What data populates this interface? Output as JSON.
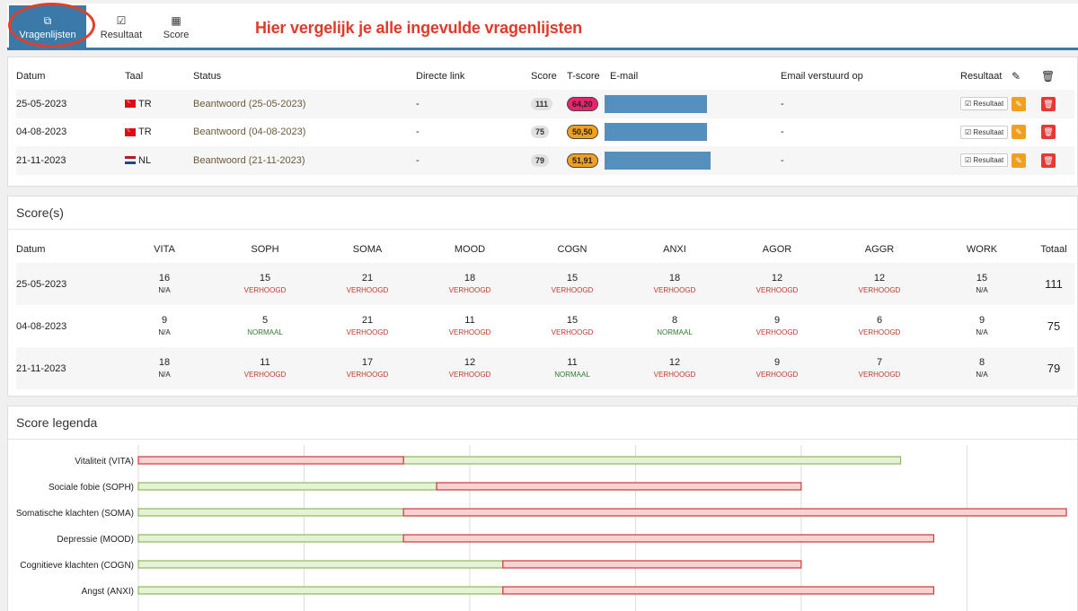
{
  "tabs": [
    {
      "label": "Vragenlijsten",
      "icon": "copy-icon",
      "active": true
    },
    {
      "label": "Resultaat",
      "icon": "check-square-icon",
      "active": false
    },
    {
      "label": "Score",
      "icon": "calculator-icon",
      "active": false
    }
  ],
  "annotation": "Hier vergelijk je alle ingevulde vragenlijsten",
  "questionnaires": {
    "headers": {
      "datum": "Datum",
      "taal": "Taal",
      "status": "Status",
      "link": "Directe link",
      "score": "Score",
      "tscore": "T-score",
      "email": "E-mail",
      "email_sent": "Email verstuurd op",
      "result": "Resultaat"
    },
    "rows": [
      {
        "datum": "25-05-2023",
        "taal": "TR",
        "flag": "tr",
        "status": "Beantwoord (25-05-2023)",
        "link": "-",
        "score": "111",
        "tscore": "64,20",
        "tscore_color": "#e8246e",
        "email_sent": "-",
        "result_label": "Resultaat"
      },
      {
        "datum": "04-08-2023",
        "taal": "TR",
        "flag": "tr",
        "status": "Beantwoord (04-08-2023)",
        "link": "-",
        "score": "75",
        "tscore": "50,50",
        "tscore_color": "#f0a020",
        "email_sent": "-",
        "result_label": "Resultaat"
      },
      {
        "datum": "21-11-2023",
        "taal": "NL",
        "flag": "nl",
        "status": "Beantwoord (21-11-2023)",
        "link": "-",
        "score": "79",
        "tscore": "51,91",
        "tscore_color": "#f0a020",
        "email_sent": "-",
        "result_label": "Resultaat"
      }
    ]
  },
  "scores": {
    "title": "Score(s)",
    "headers": [
      "Datum",
      "VITA",
      "SOPH",
      "SOMA",
      "MOOD",
      "COGN",
      "ANXI",
      "AGOR",
      "AGGR",
      "WORK",
      "Totaal"
    ],
    "rows": [
      {
        "datum": "25-05-2023",
        "cells": [
          {
            "v": "16",
            "l": "N/A"
          },
          {
            "v": "15",
            "l": "VERHOOGD"
          },
          {
            "v": "21",
            "l": "VERHOOGD"
          },
          {
            "v": "18",
            "l": "VERHOOGD"
          },
          {
            "v": "15",
            "l": "VERHOOGD"
          },
          {
            "v": "18",
            "l": "VERHOOGD"
          },
          {
            "v": "12",
            "l": "VERHOOGD"
          },
          {
            "v": "12",
            "l": "VERHOOGD"
          },
          {
            "v": "15",
            "l": "N/A"
          }
        ],
        "total": "111"
      },
      {
        "datum": "04-08-2023",
        "cells": [
          {
            "v": "9",
            "l": "N/A"
          },
          {
            "v": "5",
            "l": "NORMAAL"
          },
          {
            "v": "21",
            "l": "VERHOOGD"
          },
          {
            "v": "11",
            "l": "VERHOOGD"
          },
          {
            "v": "15",
            "l": "VERHOOGD"
          },
          {
            "v": "8",
            "l": "NORMAAL"
          },
          {
            "v": "9",
            "l": "VERHOOGD"
          },
          {
            "v": "6",
            "l": "VERHOOGD"
          },
          {
            "v": "9",
            "l": "N/A"
          }
        ],
        "total": "75"
      },
      {
        "datum": "21-11-2023",
        "cells": [
          {
            "v": "18",
            "l": "N/A"
          },
          {
            "v": "11",
            "l": "VERHOOGD"
          },
          {
            "v": "17",
            "l": "VERHOOGD"
          },
          {
            "v": "12",
            "l": "VERHOOGD"
          },
          {
            "v": "11",
            "l": "NORMAAL"
          },
          {
            "v": "12",
            "l": "VERHOOGD"
          },
          {
            "v": "9",
            "l": "VERHOOGD"
          },
          {
            "v": "7",
            "l": "VERHOOGD"
          },
          {
            "v": "8",
            "l": "N/A"
          }
        ],
        "total": "79"
      }
    ]
  },
  "legend": {
    "title": "Score legenda",
    "chart_data": {
      "type": "bar",
      "orientation": "horizontal",
      "stacked": true,
      "categories": [
        "Vitaliteit (VITA)",
        "Sociale fobie (SOPH)",
        "Somatische klachten (SOMA)",
        "Depressie (MOOD)",
        "Cognitieve klachten (COGN)",
        "Angst (ANXI)"
      ],
      "series": [
        {
          "color": "#e6f2d6",
          "border": "#8fb860",
          "ranges": [
            [
              8,
              23
            ],
            [
              0,
              9
            ],
            [
              0,
              8
            ],
            [
              0,
              8
            ],
            [
              0,
              11
            ],
            [
              0,
              11
            ]
          ]
        },
        {
          "color": "#f9d3d3",
          "border": "#cc3a3a",
          "ranges": [
            [
              0,
              8
            ],
            [
              9,
              20
            ],
            [
              8,
              28
            ],
            [
              8,
              24
            ],
            [
              11,
              20
            ],
            [
              11,
              24
            ]
          ]
        }
      ],
      "xlim": [
        0,
        28
      ],
      "grid": true
    }
  }
}
